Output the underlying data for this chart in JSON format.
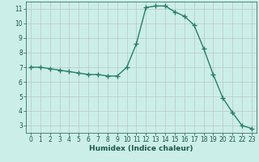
{
  "x": [
    0,
    1,
    2,
    3,
    4,
    5,
    6,
    7,
    8,
    9,
    10,
    11,
    12,
    13,
    14,
    15,
    16,
    17,
    18,
    19,
    20,
    21,
    22,
    23
  ],
  "y": [
    7.0,
    7.0,
    6.9,
    6.8,
    6.7,
    6.6,
    6.5,
    6.5,
    6.4,
    6.4,
    7.0,
    8.6,
    11.1,
    11.2,
    11.2,
    10.8,
    10.5,
    9.9,
    8.3,
    6.5,
    4.9,
    3.9,
    3.0,
    2.8
  ],
  "line_color": "#2a7d6a",
  "marker": "+",
  "marker_size": 4,
  "bg_color": "#cceee8",
  "grid_color": "#b8c8c4",
  "xlabel": "Humidex (Indice chaleur)",
  "xlim": [
    -0.5,
    23.5
  ],
  "ylim": [
    2.5,
    11.5
  ],
  "yticks": [
    3,
    4,
    5,
    6,
    7,
    8,
    9,
    10,
    11
  ],
  "xticks": [
    0,
    1,
    2,
    3,
    4,
    5,
    6,
    7,
    8,
    9,
    10,
    11,
    12,
    13,
    14,
    15,
    16,
    17,
    18,
    19,
    20,
    21,
    22,
    23
  ],
  "tick_fontsize": 5.5,
  "xlabel_fontsize": 6.5,
  "xlabel_fontweight": "bold",
  "tick_color": "#1a5a4a",
  "line_width": 1.0
}
